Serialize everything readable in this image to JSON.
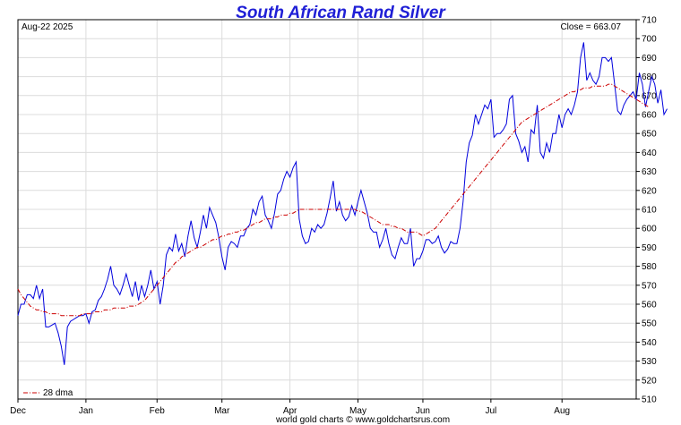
{
  "chart_data": {
    "type": "line",
    "title": "South African Rand Silver",
    "date_label": "Aug-22  2025",
    "close_label": "Close = 663.07",
    "footer": "world gold charts © www.goldchartsrus.com",
    "ylim": [
      510,
      710
    ],
    "y_ticks": [
      510,
      520,
      530,
      540,
      550,
      560,
      570,
      580,
      590,
      600,
      610,
      620,
      630,
      640,
      650,
      660,
      670,
      680,
      690,
      700,
      710
    ],
    "x_ticks": [
      {
        "label": "Dec",
        "x": 0
      },
      {
        "label": "Jan",
        "x": 22
      },
      {
        "label": "Feb",
        "x": 45
      },
      {
        "label": "Mar",
        "x": 66
      },
      {
        "label": "Apr",
        "x": 88
      },
      {
        "label": "May",
        "x": 110
      },
      {
        "label": "Jun",
        "x": 131
      },
      {
        "label": "Jul",
        "x": 153
      },
      {
        "label": "Aug",
        "x": 176
      }
    ],
    "x_max": 200,
    "grid": true,
    "legend": {
      "position": "bottom-left",
      "entries": [
        "28 dma"
      ]
    },
    "series": [
      {
        "key": "price",
        "color": "#0000dd",
        "values": [
          554,
          560,
          560,
          565,
          565,
          563,
          570,
          563,
          568,
          548,
          548,
          549,
          550,
          545,
          538,
          528,
          548,
          551,
          552,
          553,
          554,
          554,
          555,
          550,
          556,
          557,
          562,
          564,
          568,
          573,
          580,
          570,
          568,
          565,
          570,
          576,
          570,
          564,
          572,
          562,
          570,
          564,
          570,
          578,
          568,
          572,
          560,
          570,
          586,
          590,
          588,
          597,
          588,
          592,
          585,
          596,
          604,
          595,
          590,
          598,
          607,
          600,
          611,
          607,
          603,
          595,
          585,
          578,
          590,
          593,
          592,
          590,
          596,
          596,
          600,
          602,
          610,
          607,
          614,
          617,
          607,
          604,
          600,
          608,
          618,
          620,
          626,
          630,
          627,
          632,
          635,
          605,
          596,
          592,
          593,
          600,
          598,
          602,
          600,
          602,
          608,
          616,
          625,
          609,
          614,
          607,
          604,
          606,
          612,
          607,
          614,
          620,
          614,
          608,
          600,
          598,
          598,
          590,
          594,
          600,
          592,
          586,
          584,
          590,
          595,
          592,
          592,
          600,
          580,
          584,
          584,
          588,
          594,
          594,
          592,
          593,
          596,
          590,
          587,
          589,
          593,
          592,
          592,
          600,
          614,
          635,
          645,
          649,
          660,
          655,
          660,
          665,
          663,
          668,
          648,
          650,
          650,
          652,
          655,
          668,
          670,
          650,
          646,
          640,
          643,
          635,
          652,
          650,
          665,
          640,
          637,
          645,
          640,
          650,
          650,
          660,
          653,
          660,
          663,
          660,
          665,
          672,
          690,
          698,
          678,
          682,
          678,
          676,
          680,
          690,
          690,
          688,
          690,
          676,
          662,
          660,
          665,
          668,
          670,
          672,
          668,
          682,
          676,
          664,
          672,
          680,
          676,
          666,
          673,
          660,
          663
        ]
      },
      {
        "key": "dma",
        "name": "28 dma",
        "color": "#cc0000",
        "values": [
          568,
          565,
          563,
          561,
          559,
          558,
          557,
          557,
          556,
          556,
          555,
          555,
          555,
          555,
          554,
          554,
          554,
          554,
          554,
          554,
          554,
          555,
          555,
          555,
          555,
          556,
          556,
          556,
          557,
          557,
          557,
          558,
          558,
          558,
          558,
          558,
          559,
          559,
          559,
          560,
          561,
          562,
          564,
          566,
          568,
          570,
          572,
          574,
          576,
          578,
          580,
          582,
          583,
          585,
          586,
          587,
          588,
          589,
          590,
          590,
          591,
          592,
          593,
          594,
          594,
          595,
          596,
          596,
          597,
          597,
          598,
          598,
          599,
          599,
          600,
          601,
          602,
          603,
          603,
          604,
          605,
          605,
          605,
          606,
          606,
          607,
          607,
          607,
          608,
          608,
          609,
          610,
          610,
          610,
          610,
          610,
          610,
          610,
          610,
          610,
          610,
          610,
          610,
          610,
          610,
          610,
          610,
          610,
          610,
          610,
          609,
          609,
          608,
          607,
          606,
          605,
          604,
          603,
          602,
          602,
          602,
          601,
          601,
          600,
          600,
          599,
          598,
          598,
          598,
          598,
          597,
          596,
          597,
          598,
          599,
          600,
          602,
          604,
          606,
          608,
          610,
          612,
          614,
          616,
          618,
          620,
          622,
          624,
          626,
          628,
          630,
          632,
          634,
          636,
          638,
          640,
          642,
          644,
          646,
          648,
          650,
          652,
          654,
          656,
          657,
          658,
          659,
          660,
          661,
          662,
          663,
          664,
          665,
          666,
          667,
          668,
          669,
          670,
          671,
          672,
          672,
          673,
          673,
          674,
          674,
          674,
          675,
          675,
          675,
          675,
          675,
          676,
          676,
          675,
          674,
          673,
          672,
          671,
          670,
          669,
          668,
          667,
          666,
          665,
          664
        ]
      }
    ]
  }
}
